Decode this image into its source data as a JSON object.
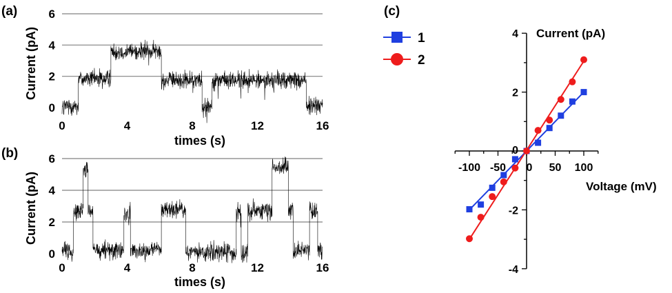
{
  "chart_data": [
    {
      "panel_label": "(a)",
      "type": "line",
      "xlabel": "times (s)",
      "ylabel": "Current (pA)",
      "xlim": [
        0,
        16
      ],
      "ylim": [
        0,
        6
      ],
      "xticks": [
        "0",
        "4",
        "8",
        "12",
        "16"
      ],
      "yticks": [
        "0",
        "2",
        "4",
        "6"
      ],
      "grid": "horizontal",
      "segments": [
        {
          "t0": 0,
          "t1": 1.0,
          "level": 0.1
        },
        {
          "t0": 1.0,
          "t1": 3.0,
          "level": 1.85
        },
        {
          "t0": 3.0,
          "t1": 6.1,
          "level": 3.6
        },
        {
          "t0": 6.1,
          "t1": 8.6,
          "level": 1.75
        },
        {
          "t0": 8.6,
          "t1": 9.2,
          "level": 0.1
        },
        {
          "t0": 9.2,
          "t1": 15.0,
          "level": 1.75
        },
        {
          "t0": 15.0,
          "t1": 16,
          "level": 0.1
        }
      ]
    },
    {
      "panel_label": "(b)",
      "type": "line",
      "xlabel": "times (s)",
      "ylabel": "Current (pA)",
      "xlim": [
        0,
        16
      ],
      "ylim": [
        0,
        6
      ],
      "xticks": [
        "0",
        "4",
        "8",
        "12",
        "16"
      ],
      "yticks": [
        "0",
        "2",
        "4",
        "6"
      ],
      "grid": "horizontal",
      "segments": [
        {
          "t0": 0,
          "t1": 0.7,
          "level": 0.2
        },
        {
          "t0": 0.7,
          "t1": 1.3,
          "level": 2.7
        },
        {
          "t0": 1.3,
          "t1": 1.6,
          "level": 5.3
        },
        {
          "t0": 1.6,
          "t1": 1.9,
          "level": 2.7
        },
        {
          "t0": 1.9,
          "t1": 3.8,
          "level": 0.2
        },
        {
          "t0": 3.8,
          "t1": 4.2,
          "level": 2.5
        },
        {
          "t0": 4.2,
          "t1": 6.1,
          "level": 0.2
        },
        {
          "t0": 6.1,
          "t1": 7.6,
          "level": 2.8
        },
        {
          "t0": 7.6,
          "t1": 10.7,
          "level": 0.1
        },
        {
          "t0": 10.7,
          "t1": 11.0,
          "level": 2.6
        },
        {
          "t0": 11.0,
          "t1": 11.4,
          "level": 0.1
        },
        {
          "t0": 11.4,
          "t1": 12.9,
          "level": 2.7
        },
        {
          "t0": 12.9,
          "t1": 13.9,
          "level": 5.5
        },
        {
          "t0": 13.9,
          "t1": 14.2,
          "level": 2.7
        },
        {
          "t0": 14.2,
          "t1": 15.2,
          "level": 0.2
        },
        {
          "t0": 15.2,
          "t1": 15.7,
          "level": 2.7
        },
        {
          "t0": 15.7,
          "t1": 16,
          "level": 0.2
        }
      ]
    },
    {
      "panel_label": "(c)",
      "type": "scatter",
      "xlabel": "Voltage (mV)",
      "ylabel": "Current (pA)",
      "xlim": [
        -125,
        125
      ],
      "ylim": [
        -4,
        4
      ],
      "xticks": [
        "-100",
        "-50",
        "0",
        "50",
        "100"
      ],
      "yticks": [
        "-4",
        "-2",
        "0",
        "2",
        "4"
      ],
      "legend": "top-left",
      "series": [
        {
          "name": "1",
          "color": "#1f3fe0",
          "marker": "square",
          "x": [
            -100,
            -80,
            -60,
            -40,
            -20,
            0,
            20,
            40,
            60,
            80,
            100
          ],
          "y": [
            -1.98,
            -1.82,
            -1.25,
            -0.82,
            -0.28,
            0.0,
            0.28,
            0.78,
            1.2,
            1.68,
            2.0
          ],
          "fit": [
            [
              -100,
              -2.0
            ],
            [
              100,
              2.0
            ]
          ]
        },
        {
          "name": "2",
          "color": "#ee1c1c",
          "marker": "circle",
          "x": [
            -100,
            -80,
            -60,
            -40,
            -20,
            0,
            20,
            40,
            60,
            80,
            100
          ],
          "y": [
            -2.98,
            -2.25,
            -1.55,
            -1.05,
            -0.58,
            0.0,
            0.7,
            1.05,
            1.75,
            2.35,
            3.1
          ],
          "fit": [
            [
              -100,
              -3.0
            ],
            [
              100,
              3.05
            ]
          ]
        }
      ]
    }
  ]
}
